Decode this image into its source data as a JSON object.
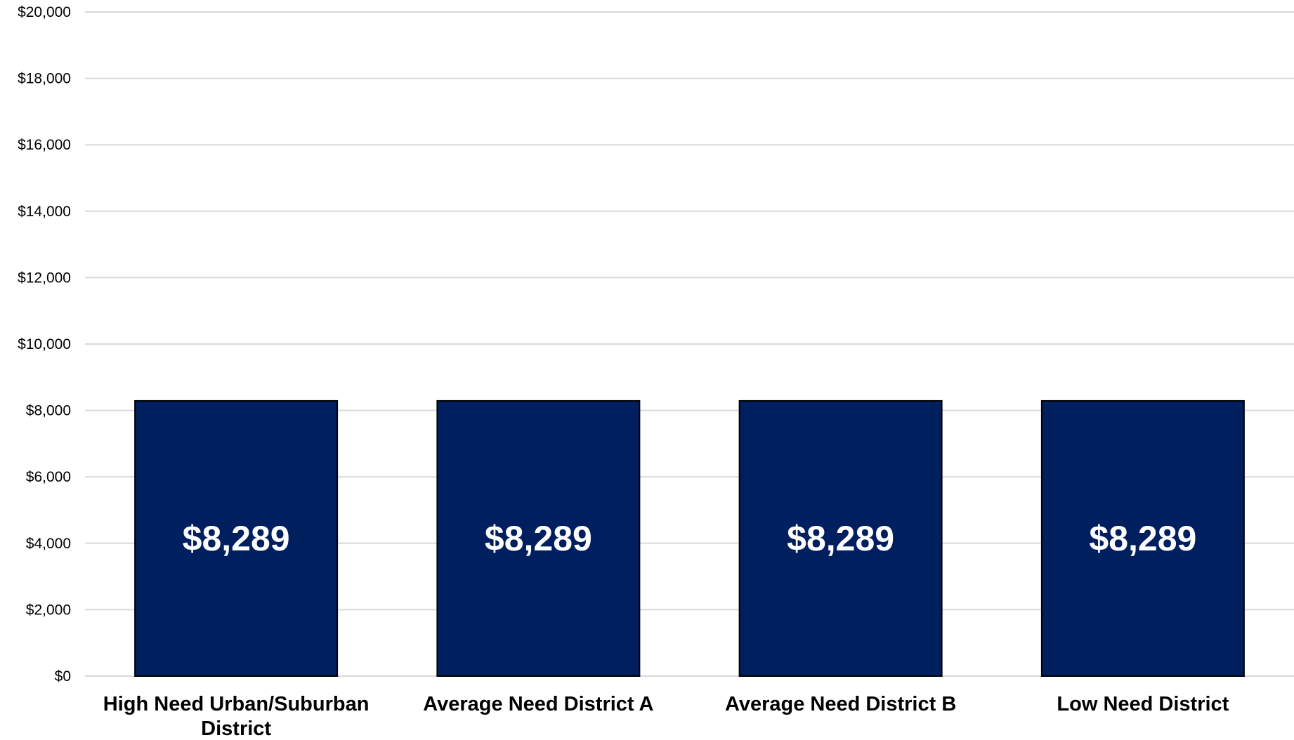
{
  "chart_data": {
    "type": "bar",
    "categories": [
      "High Need Urban/Suburban District",
      "Average Need District A",
      "Average Need District B",
      "Low Need District"
    ],
    "category_label_lines": [
      [
        "High Need Urban/Suburban",
        "District"
      ],
      [
        "Average Need District A"
      ],
      [
        "Average Need District B"
      ],
      [
        "Low Need District"
      ]
    ],
    "values": [
      8289,
      8289,
      8289,
      8289
    ],
    "data_labels": [
      "$8,289",
      "$8,289",
      "$8,289",
      "$8,289"
    ],
    "ylim": [
      0,
      20000
    ],
    "y_ticks": [
      0,
      2000,
      4000,
      6000,
      8000,
      10000,
      12000,
      14000,
      16000,
      18000,
      20000
    ],
    "y_tick_labels": [
      "$0",
      "$2,000",
      "$4,000",
      "$6,000",
      "$8,000",
      "$10,000",
      "$12,000",
      "$14,000",
      "$16,000",
      "$18,000",
      "$20,000"
    ],
    "title": "",
    "xlabel": "",
    "ylabel": "",
    "grid": true,
    "legend": "none",
    "colors": {
      "bar": "#001f5f",
      "bar_border": "#000000",
      "gridline": "#d9d9d9",
      "data_label": "#ffffff"
    }
  }
}
